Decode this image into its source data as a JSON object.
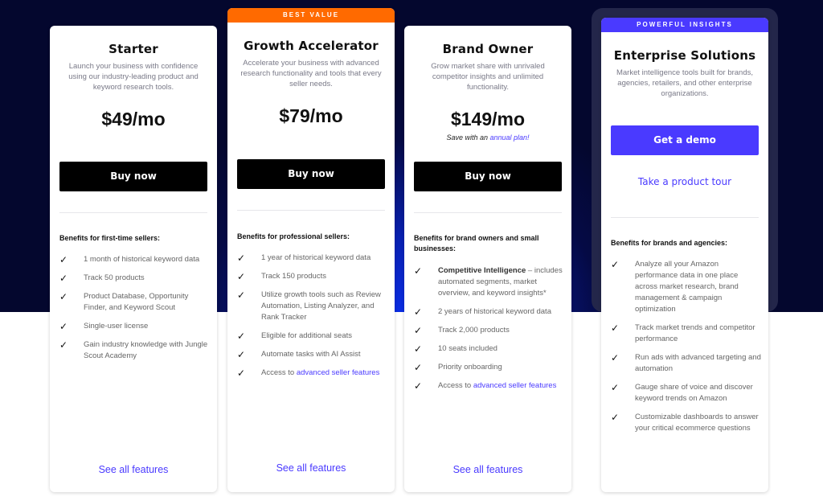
{
  "colors": {
    "accent": "#4a3aff",
    "best_value": "#ff6a00",
    "background_dark": "#04072e"
  },
  "plans": [
    {
      "name": "Starter",
      "description": "Launch your business with confidence using our industry-leading product and keyword research tools.",
      "price": "$49/mo",
      "cta": "Buy now",
      "benefits_title": "Benefits for first-time sellers:",
      "benefits": [
        {
          "text": "1 month of historical keyword data"
        },
        {
          "text": "Track 50 products"
        },
        {
          "text": "Product Database, Opportunity Finder, and Keyword Scout"
        },
        {
          "text": "Single-user license"
        },
        {
          "text": "Gain industry knowledge with Jungle Scout Academy"
        }
      ],
      "see_all": "See all features"
    },
    {
      "badge": "BEST VALUE",
      "name": "Growth Accelerator",
      "description": "Accelerate your business with advanced research functionality and tools that every seller needs.",
      "price": "$79/mo",
      "cta": "Buy now",
      "benefits_title": "Benefits for professional sellers:",
      "benefits": [
        {
          "text": "1 year of historical keyword data"
        },
        {
          "text": "Track 150 products"
        },
        {
          "text": "Utilize growth tools such as Review Automation, Listing Analyzer, and Rank Tracker"
        },
        {
          "text": "Eligible for additional seats"
        },
        {
          "text": "Automate tasks with AI Assist"
        },
        {
          "text": "Access to ",
          "link": "advanced seller features"
        }
      ],
      "see_all": "See all features"
    },
    {
      "name": "Brand Owner",
      "description": "Grow market share with unrivaled competitor insights and unlimited functionality.",
      "price": "$149/mo",
      "save_text": "Save with an ",
      "save_link": "annual plan!",
      "cta": "Buy now",
      "benefits_title": "Benefits for brand owners and small businesses:",
      "benefits": [
        {
          "bold": "Competitive Intelligence",
          "text": " – includes automated segments, market overview, and keyword insights*"
        },
        {
          "text": "2 years of historical keyword data"
        },
        {
          "text": "Track 2,000 products"
        },
        {
          "text": "10 seats included"
        },
        {
          "text": "Priority onboarding"
        },
        {
          "text": "Access to ",
          "link": "advanced seller features"
        }
      ],
      "see_all": "See all features"
    },
    {
      "badge": "POWERFUL INSIGHTS",
      "name": "Enterprise Solutions",
      "description": "Market intelligence tools built for brands, agencies, retailers, and other enterprise organizations.",
      "cta": "Get a demo",
      "tour": "Take a product tour",
      "benefits_title": "Benefits for brands and agencies:",
      "benefits": [
        {
          "text": "Analyze all your Amazon performance data in one place across market research, brand management & campaign optimization"
        },
        {
          "text": "Track market trends and competitor performance"
        },
        {
          "text": "Run ads with advanced targeting and automation"
        },
        {
          "text": "Gauge share of voice and discover keyword trends on Amazon"
        },
        {
          "text": "Customizable dashboards to answer your critical ecommerce questions"
        }
      ]
    }
  ]
}
